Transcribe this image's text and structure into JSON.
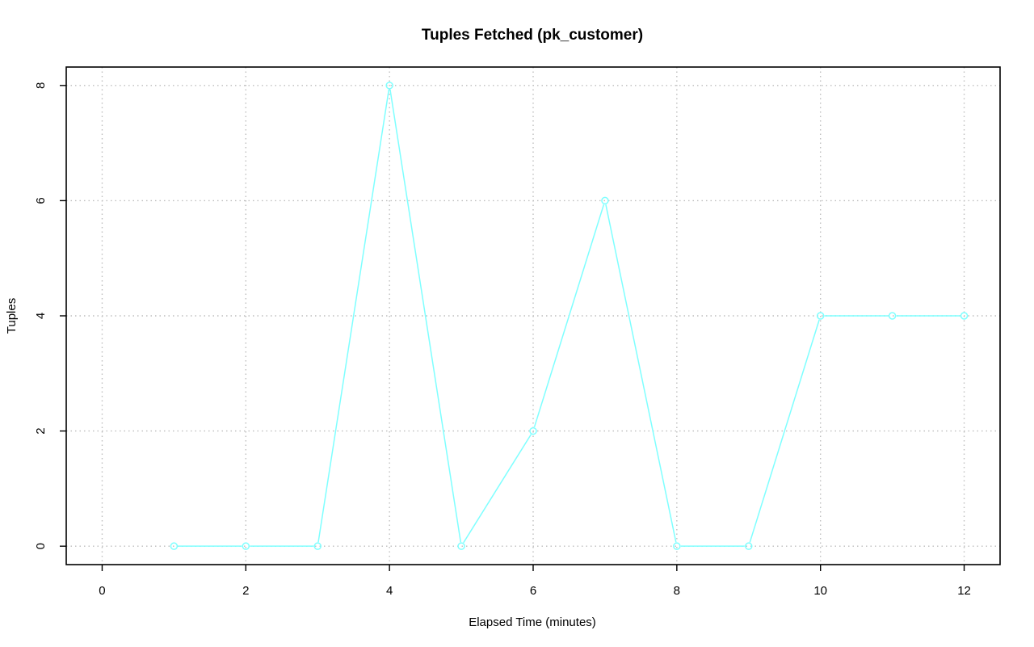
{
  "chart_data": {
    "type": "line",
    "title": "Tuples Fetched (pk_customer)",
    "xlabel": "Elapsed Time (minutes)",
    "ylabel": "Tuples",
    "xlim": [
      -0.5,
      12.5
    ],
    "ylim": [
      -0.32,
      8.32
    ],
    "xticks": [
      0,
      2,
      4,
      6,
      8,
      10,
      12
    ],
    "yticks": [
      0,
      2,
      4,
      6,
      8
    ],
    "grid": true,
    "legend": "none",
    "series": [
      {
        "color": "#7fffff",
        "x": [
          1,
          2,
          3,
          4,
          5,
          6,
          7,
          8,
          9,
          10,
          11,
          12
        ],
        "y": [
          0,
          0,
          0,
          8,
          0,
          2,
          6,
          0,
          0,
          4,
          4,
          4
        ]
      }
    ]
  }
}
